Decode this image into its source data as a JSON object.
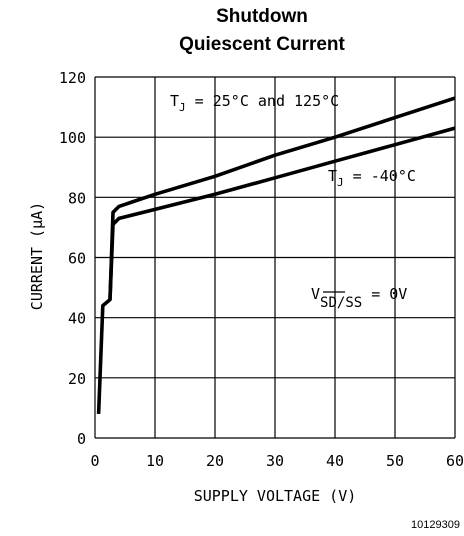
{
  "chart_data": {
    "type": "line",
    "title_line1": "Shutdown",
    "title_line2": "Quiescent Current",
    "xlabel": "SUPPLY VOLTAGE (V)",
    "ylabel": "CURRENT (μA)",
    "xlim": [
      0,
      60
    ],
    "ylim": [
      0,
      120
    ],
    "x_ticks": [
      0,
      10,
      20,
      30,
      40,
      50,
      60
    ],
    "y_ticks": [
      0,
      20,
      40,
      60,
      80,
      100,
      120
    ],
    "grid": true,
    "series": [
      {
        "name": "T_J = 25°C and 125°C",
        "x": [
          0.6,
          1.3,
          2.5,
          3.0,
          4.0,
          10,
          20,
          30,
          40,
          50,
          60
        ],
        "y": [
          8,
          44,
          46,
          75,
          77,
          81,
          87,
          94,
          100,
          106.5,
          113
        ]
      },
      {
        "name": "T_J = -40°C",
        "x": [
          2.5,
          3.0,
          4.0,
          10,
          20,
          30,
          40,
          50,
          60
        ],
        "y": [
          46,
          71,
          73,
          76,
          81,
          86.5,
          92,
          97.5,
          103
        ]
      }
    ],
    "annotations": {
      "t_hot": {
        "t": "T",
        "sub": "J",
        "rest": " = 25°C and 125°C"
      },
      "t_cold": {
        "t": "T",
        "sub": "J",
        "rest": " = -40°C"
      },
      "v_sd": {
        "v": "V",
        "sub": "SD/SS",
        "rest": " = 0V"
      }
    },
    "figure_id": "10129309"
  }
}
